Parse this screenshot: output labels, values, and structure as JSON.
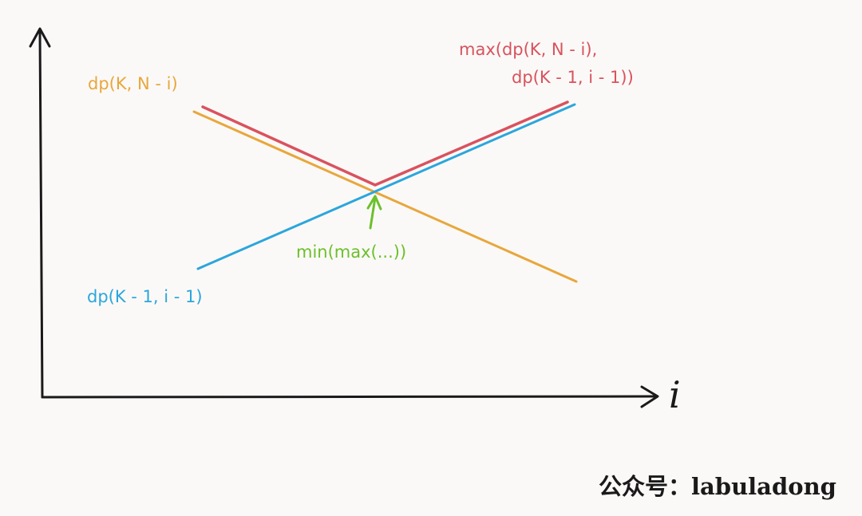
{
  "colors": {
    "background": "#fbf9f7",
    "axis": "#1a1a1a",
    "red_curve": "#d9525e",
    "orange_curve": "#e8a73c",
    "blue_curve": "#2ba6dc",
    "green_annotation": "#6cc02c"
  },
  "axes": {
    "x_variable": "i"
  },
  "labels": {
    "orange": "dp(K, N - i)",
    "red_line1": "max(dp(K, N - i),",
    "red_line2": "dp(K - 1, i - 1))",
    "blue": "dp(K - 1, i - 1)",
    "green": "min(max(...))"
  },
  "watermark": "公众号：labuladong"
}
